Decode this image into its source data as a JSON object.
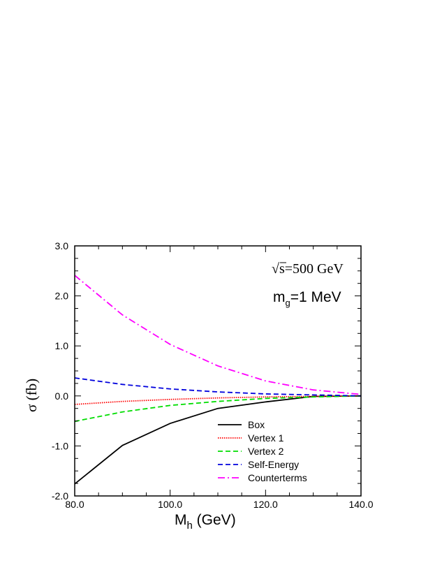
{
  "chart_data": {
    "type": "line",
    "xlabel_main": "M",
    "xlabel_sub": "h",
    "xlabel_unit": " (GeV)",
    "ylabel_symbol": "σ",
    "ylabel_unit": " (fb)",
    "xlim": [
      80,
      140
    ],
    "ylim": [
      -2,
      3
    ],
    "x_ticks": [
      "80.0",
      "100.0",
      "120.0",
      "140.0"
    ],
    "y_ticks": [
      "-2.0",
      "-1.0",
      "0.0",
      "1.0",
      "2.0",
      "3.0"
    ],
    "annotations": {
      "sqrt_sign": "√",
      "energy": "s=500 GeV",
      "mass_main": "m",
      "mass_sub": "g",
      "mass_value": "=1 MeV"
    },
    "x": [
      80,
      90,
      100,
      110,
      120,
      130,
      140
    ],
    "series": [
      {
        "name": "Box",
        "color": "#000000",
        "dash": "solid",
        "values": [
          -1.76,
          -0.99,
          -0.55,
          -0.25,
          -0.12,
          -0.01,
          0.0
        ]
      },
      {
        "name": "Vertex 1",
        "color": "#ff0000",
        "dash": "dotted",
        "values": [
          -0.17,
          -0.11,
          -0.07,
          -0.04,
          -0.02,
          -0.01,
          0.0
        ]
      },
      {
        "name": "Vertex 2",
        "color": "#00dd00",
        "dash": "dashed",
        "values": [
          -0.51,
          -0.32,
          -0.19,
          -0.11,
          -0.05,
          -0.02,
          0.0
        ]
      },
      {
        "name": "Self-Energy",
        "color": "#0000dd",
        "dash": "dashed",
        "values": [
          0.36,
          0.23,
          0.14,
          0.08,
          0.04,
          0.02,
          0.0
        ]
      },
      {
        "name": "Counterterms",
        "color": "#ff00ff",
        "dash": "dashdot",
        "values": [
          2.41,
          1.62,
          1.03,
          0.6,
          0.3,
          0.12,
          0.03
        ]
      }
    ],
    "grid": false,
    "legend_position": "bottom-right"
  }
}
